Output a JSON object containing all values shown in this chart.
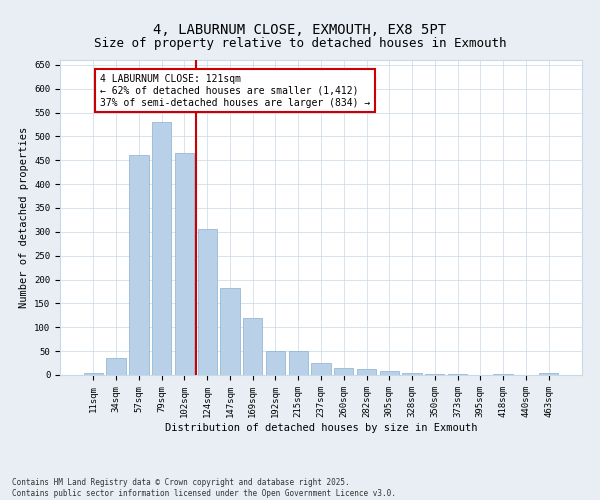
{
  "title": "4, LABURNUM CLOSE, EXMOUTH, EX8 5PT",
  "subtitle": "Size of property relative to detached houses in Exmouth",
  "xlabel": "Distribution of detached houses by size in Exmouth",
  "ylabel": "Number of detached properties",
  "categories": [
    "11sqm",
    "34sqm",
    "57sqm",
    "79sqm",
    "102sqm",
    "124sqm",
    "147sqm",
    "169sqm",
    "192sqm",
    "215sqm",
    "237sqm",
    "260sqm",
    "282sqm",
    "305sqm",
    "328sqm",
    "350sqm",
    "373sqm",
    "395sqm",
    "418sqm",
    "440sqm",
    "463sqm"
  ],
  "values": [
    5,
    35,
    460,
    530,
    465,
    305,
    182,
    120,
    50,
    50,
    25,
    15,
    12,
    8,
    5,
    3,
    2,
    1,
    3,
    1,
    5
  ],
  "bar_color": "#b8d0e8",
  "bar_edge_color": "#8ab0d0",
  "vline_color": "#cc0000",
  "annotation_line1": "4 LABURNUM CLOSE: 121sqm",
  "annotation_line2": "← 62% of detached houses are smaller (1,412)",
  "annotation_line3": "37% of semi-detached houses are larger (834) →",
  "annotation_box_color": "#ffffff",
  "annotation_box_edge_color": "#cc0000",
  "ylim": [
    0,
    660
  ],
  "yticks": [
    0,
    50,
    100,
    150,
    200,
    250,
    300,
    350,
    400,
    450,
    500,
    550,
    600,
    650
  ],
  "footer_line1": "Contains HM Land Registry data © Crown copyright and database right 2025.",
  "footer_line2": "Contains public sector information licensed under the Open Government Licence v3.0.",
  "bg_color": "#e8eef4",
  "plot_bg_color": "#ffffff",
  "grid_color": "#c8d8e8",
  "title_fontsize": 10,
  "subtitle_fontsize": 9,
  "axis_label_fontsize": 7.5,
  "tick_fontsize": 6.5,
  "annotation_fontsize": 7,
  "footer_fontsize": 5.5
}
